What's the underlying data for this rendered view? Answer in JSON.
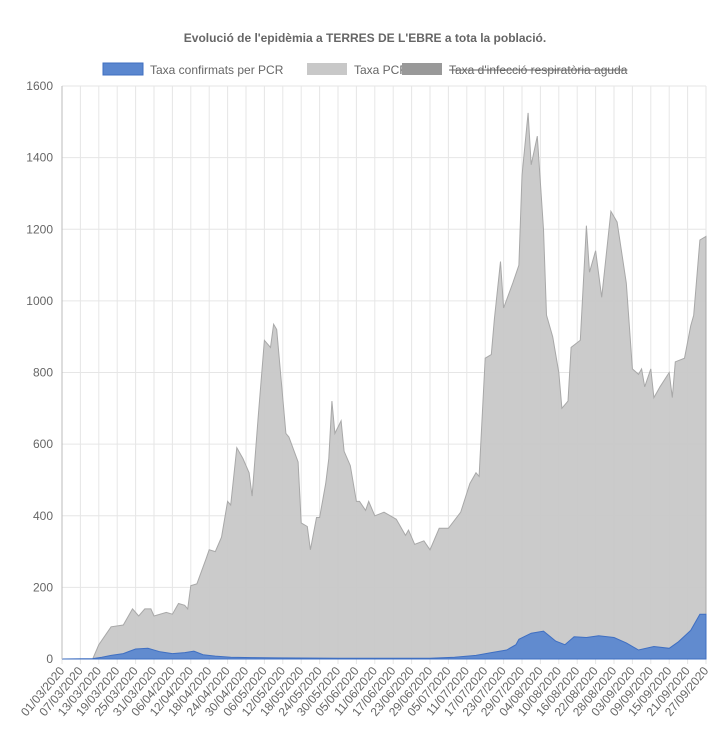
{
  "chart_data": {
    "type": "area",
    "title": "Evolució de l'epidèmia a TERRES DE L'EBRE a tota la població.",
    "xlabel": "",
    "ylabel": "",
    "ylim": [
      0,
      1600
    ],
    "yticks": [
      0,
      200,
      400,
      600,
      800,
      1000,
      1200,
      1400,
      1600
    ],
    "x_day_range": [
      0,
      210
    ],
    "x_tick_step_days": 6,
    "x_tick_labels": [
      "01/03/2020",
      "07/03/2020",
      "13/03/2020",
      "19/03/2020",
      "25/03/2020",
      "31/03/2020",
      "06/04/2020",
      "12/04/2020",
      "18/04/2020",
      "24/04/2020",
      "30/04/2020",
      "06/05/2020",
      "12/05/2020",
      "18/05/2020",
      "24/05/2020",
      "30/05/2020",
      "05/06/2020",
      "11/06/2020",
      "17/06/2020",
      "23/06/2020",
      "29/06/2020",
      "05/07/2020",
      "11/07/2020",
      "17/07/2020",
      "23/07/2020",
      "29/07/2020",
      "04/08/2020",
      "10/08/2020",
      "16/08/2020",
      "22/08/2020",
      "28/08/2020",
      "03/09/2020",
      "09/09/2020",
      "15/09/2020",
      "21/09/2020",
      "27/09/2020"
    ],
    "grid": true,
    "legend_position": "top",
    "series": [
      {
        "name": "Taxa confirmats per PCR",
        "color": "#5b87cf",
        "border": "#3f6fc2",
        "hidden": false,
        "points": [
          [
            0,
            0
          ],
          [
            10,
            1
          ],
          [
            13,
            5
          ],
          [
            16,
            10
          ],
          [
            20,
            15
          ],
          [
            24,
            28
          ],
          [
            28,
            30
          ],
          [
            32,
            20
          ],
          [
            36,
            15
          ],
          [
            40,
            18
          ],
          [
            43,
            22
          ],
          [
            46,
            12
          ],
          [
            50,
            8
          ],
          [
            55,
            5
          ],
          [
            62,
            4
          ],
          [
            70,
            3
          ],
          [
            90,
            2
          ],
          [
            120,
            2
          ],
          [
            128,
            5
          ],
          [
            135,
            10
          ],
          [
            140,
            18
          ],
          [
            145,
            25
          ],
          [
            148,
            40
          ],
          [
            149,
            55
          ],
          [
            153,
            72
          ],
          [
            157,
            78
          ],
          [
            161,
            50
          ],
          [
            164,
            40
          ],
          [
            167,
            62
          ],
          [
            171,
            60
          ],
          [
            175,
            65
          ],
          [
            180,
            60
          ],
          [
            184,
            45
          ],
          [
            188,
            25
          ],
          [
            193,
            35
          ],
          [
            198,
            30
          ],
          [
            201,
            48
          ],
          [
            205,
            80
          ],
          [
            208,
            125
          ],
          [
            210,
            125
          ]
        ]
      },
      {
        "name": "Taxa PCR",
        "color": "#c8c8c8",
        "border": "#a8a8a8",
        "hidden": false,
        "points": [
          [
            0,
            0
          ],
          [
            10,
            0
          ],
          [
            12,
            40
          ],
          [
            16,
            90
          ],
          [
            20,
            95
          ],
          [
            23,
            140
          ],
          [
            25,
            120
          ],
          [
            27,
            140
          ],
          [
            29,
            140
          ],
          [
            30,
            120
          ],
          [
            34,
            130
          ],
          [
            36,
            125
          ],
          [
            38,
            155
          ],
          [
            40,
            150
          ],
          [
            41,
            140
          ],
          [
            42,
            205
          ],
          [
            44,
            210
          ],
          [
            47,
            280
          ],
          [
            48,
            305
          ],
          [
            50,
            300
          ],
          [
            52,
            340
          ],
          [
            54,
            440
          ],
          [
            55,
            430
          ],
          [
            57,
            590
          ],
          [
            59,
            560
          ],
          [
            61,
            520
          ],
          [
            62,
            455
          ],
          [
            64,
            680
          ],
          [
            66,
            890
          ],
          [
            68,
            870
          ],
          [
            69,
            935
          ],
          [
            70,
            920
          ],
          [
            73,
            630
          ],
          [
            74,
            620
          ],
          [
            77,
            550
          ],
          [
            78,
            380
          ],
          [
            80,
            370
          ],
          [
            81,
            305
          ],
          [
            83,
            395
          ],
          [
            84,
            395
          ],
          [
            86,
            490
          ],
          [
            87,
            560
          ],
          [
            88,
            720
          ],
          [
            89,
            630
          ],
          [
            91,
            665
          ],
          [
            92,
            580
          ],
          [
            94,
            540
          ],
          [
            96,
            440
          ],
          [
            97,
            440
          ],
          [
            99,
            415
          ],
          [
            100,
            440
          ],
          [
            102,
            400
          ],
          [
            105,
            410
          ],
          [
            109,
            390
          ],
          [
            112,
            345
          ],
          [
            113,
            360
          ],
          [
            115,
            320
          ],
          [
            118,
            330
          ],
          [
            120,
            305
          ],
          [
            123,
            365
          ],
          [
            126,
            365
          ],
          [
            130,
            410
          ],
          [
            133,
            490
          ],
          [
            135,
            520
          ],
          [
            136,
            510
          ],
          [
            138,
            840
          ],
          [
            140,
            850
          ],
          [
            141,
            950
          ],
          [
            143,
            1110
          ],
          [
            144,
            980
          ],
          [
            147,
            1050
          ],
          [
            149,
            1100
          ],
          [
            150,
            1350
          ],
          [
            152,
            1525
          ],
          [
            153,
            1380
          ],
          [
            155,
            1460
          ],
          [
            157,
            1200
          ],
          [
            158,
            960
          ],
          [
            160,
            900
          ],
          [
            162,
            800
          ],
          [
            163,
            700
          ],
          [
            165,
            720
          ],
          [
            166,
            870
          ],
          [
            169,
            890
          ],
          [
            171,
            1210
          ],
          [
            172,
            1080
          ],
          [
            174,
            1140
          ],
          [
            176,
            1010
          ],
          [
            179,
            1250
          ],
          [
            181,
            1220
          ],
          [
            184,
            1050
          ],
          [
            186,
            810
          ],
          [
            188,
            795
          ],
          [
            189,
            810
          ],
          [
            190,
            760
          ],
          [
            192,
            810
          ],
          [
            193,
            730
          ],
          [
            195,
            760
          ],
          [
            198,
            800
          ],
          [
            199,
            730
          ],
          [
            200,
            830
          ],
          [
            203,
            840
          ],
          [
            205,
            930
          ],
          [
            206,
            960
          ],
          [
            208,
            1170
          ],
          [
            210,
            1180
          ]
        ]
      },
      {
        "name": "Taxa d'infecció respiratòria aguda",
        "color": "#999999",
        "hidden": true,
        "points": []
      }
    ]
  }
}
